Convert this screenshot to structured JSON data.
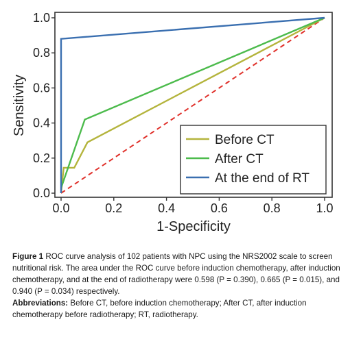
{
  "chart_data": {
    "type": "line",
    "xlabel": "1-Specificity",
    "ylabel": "Sensitivity",
    "xlim": [
      0,
      1
    ],
    "ylim": [
      0,
      1
    ],
    "x_ticks": [
      "0.0",
      "0.2",
      "0.4",
      "0.6",
      "0.8",
      "1.0"
    ],
    "y_ticks": [
      "0.0",
      "0.2",
      "0.4",
      "0.6",
      "0.8",
      "1.0"
    ],
    "legend_position": "bottom-right",
    "series": [
      {
        "name": "Before CT",
        "color": "#b4b43c",
        "x": [
          0,
          0.01,
          0.05,
          0.1,
          1.0
        ],
        "y": [
          0,
          0.145,
          0.145,
          0.29,
          1.0
        ]
      },
      {
        "name": "After CT",
        "color": "#4cbb4c",
        "x": [
          0,
          0.09,
          1.0
        ],
        "y": [
          0.03,
          0.42,
          1.0
        ]
      },
      {
        "name": "At the end of RT",
        "color": "#3a6fb0",
        "x": [
          0,
          0,
          1.0
        ],
        "y": [
          0,
          0.88,
          1.0
        ]
      }
    ],
    "reference_line": {
      "color": "#e0302a",
      "style": "dashed",
      "x": [
        0,
        1
      ],
      "y": [
        0,
        1
      ]
    }
  },
  "caption": {
    "figure_label": "Figure 1",
    "text": " ROC curve analysis of 102 patients with NPC using the NRS2002 scale to screen nutritional risk. The area under the ROC curve before induction chemotherapy, after induction chemotherapy, and at the end of radiotherapy were 0.598 (P = 0.390), 0.665 (P = 0.015), and 0.940 (P = 0.034) respectively.",
    "abbrev_label": "Abbreviations:",
    "abbrev_text": " Before CT, before induction chemotherapy; After CT, after induction chemotherapy before radiotherapy; RT, radiotherapy."
  }
}
